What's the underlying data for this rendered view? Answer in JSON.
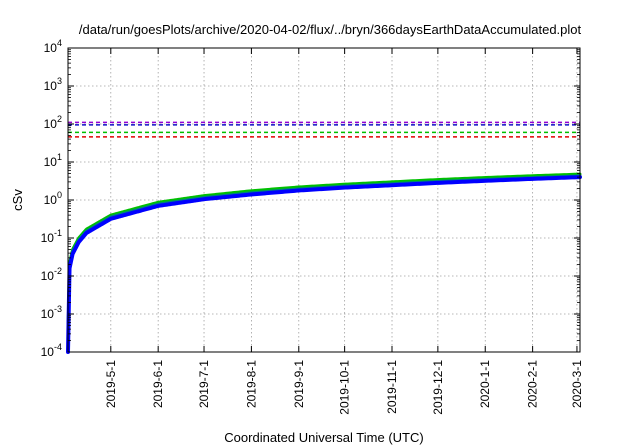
{
  "chart_data": {
    "type": "line",
    "title": "/data/run/goesPlots/archive/2020-04-02/flux/../bryn/366daysEarthDataAccumulated.plot",
    "xlabel": "Coordinated Universal Time (UTC)",
    "ylabel": "cSv",
    "y_scale": "log",
    "ylim": [
      0.0001,
      10000
    ],
    "xlim": [
      "2019-04-03",
      "2020-03-03"
    ],
    "grid": true,
    "x_ticks": [
      "2019-5-1",
      "2019-6-1",
      "2019-7-1",
      "2019-8-1",
      "2019-9-1",
      "2019-10-1",
      "2019-11-1",
      "2019-12-1",
      "2020-1-1",
      "2020-2-1",
      "2020-3-1"
    ],
    "y_ticks": [
      {
        "value": 0.0001,
        "base": "10",
        "exp": "-4"
      },
      {
        "value": 0.001,
        "base": "10",
        "exp": "-3"
      },
      {
        "value": 0.01,
        "base": "10",
        "exp": "-2"
      },
      {
        "value": 0.1,
        "base": "10",
        "exp": "-1"
      },
      {
        "value": 1,
        "base": "10",
        "exp": "0"
      },
      {
        "value": 10,
        "base": "10",
        "exp": "1"
      },
      {
        "value": 100,
        "base": "10",
        "exp": "2"
      },
      {
        "value": 1000,
        "base": "10",
        "exp": "3"
      },
      {
        "value": 10000,
        "base": "10",
        "exp": "4"
      }
    ],
    "threshold_lines": [
      {
        "value": 110,
        "color": "#9400d3"
      },
      {
        "value": 95,
        "color": "#1010c8"
      },
      {
        "value": 60,
        "color": "#00c000"
      },
      {
        "value": 46,
        "color": "#e00000"
      }
    ],
    "series": [
      {
        "color": "#00c000",
        "width": 3,
        "x": [
          "2019-04-03",
          "2019-04-04",
          "2019-04-06",
          "2019-04-10",
          "2019-04-15",
          "2019-05-01",
          "2019-06-01",
          "2019-07-01",
          "2019-08-01",
          "2019-09-01",
          "2019-10-01",
          "2019-11-01",
          "2019-12-01",
          "2020-01-01",
          "2020-02-01",
          "2020-03-03"
        ],
        "y": [
          0.0003,
          0.022,
          0.05,
          0.1,
          0.17,
          0.4,
          0.87,
          1.3,
          1.75,
          2.2,
          2.6,
          3.0,
          3.45,
          3.9,
          4.35,
          4.8
        ]
      },
      {
        "color": "#008080",
        "width": 3,
        "x": [
          "2019-04-03",
          "2019-04-04",
          "2019-04-06",
          "2019-04-10",
          "2019-04-15",
          "2019-05-01",
          "2019-06-01",
          "2019-07-01",
          "2019-08-01",
          "2019-09-01",
          "2019-10-01",
          "2019-11-01",
          "2019-12-01",
          "2020-01-01",
          "2020-02-01",
          "2020-03-03"
        ],
        "y": [
          0.00025,
          0.019,
          0.044,
          0.088,
          0.15,
          0.36,
          0.78,
          1.16,
          1.55,
          1.95,
          2.32,
          2.68,
          3.08,
          3.48,
          3.88,
          4.3
        ]
      },
      {
        "color": "#0000ff",
        "width": 4,
        "x": [
          "2019-04-03",
          "2019-04-04",
          "2019-04-06",
          "2019-04-10",
          "2019-04-15",
          "2019-05-01",
          "2019-06-01",
          "2019-07-01",
          "2019-08-01",
          "2019-09-01",
          "2019-10-01",
          "2019-11-01",
          "2019-12-01",
          "2020-01-01",
          "2020-02-01",
          "2020-03-03"
        ],
        "y": [
          0.0001,
          0.016,
          0.038,
          0.078,
          0.135,
          0.32,
          0.7,
          1.05,
          1.4,
          1.78,
          2.12,
          2.45,
          2.82,
          3.2,
          3.6,
          4.0
        ]
      }
    ]
  }
}
